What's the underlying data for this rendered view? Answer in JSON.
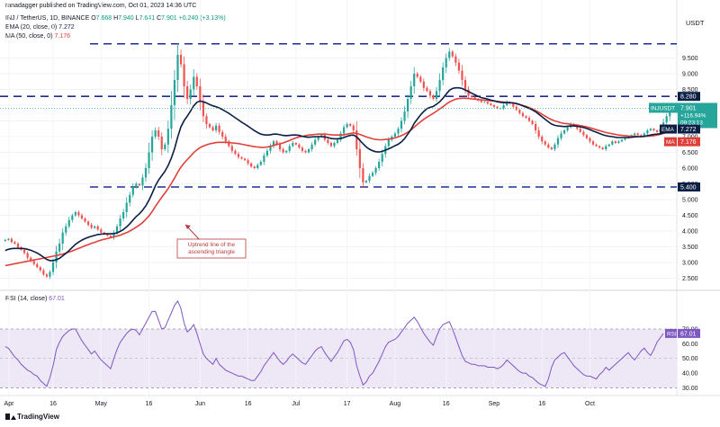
{
  "publisher": "ranadagger published on TradingView.com, Oct 01, 2023 14:36 UTC",
  "header": {
    "symbol": "INJ / TetherUS, 1D, BINANCE",
    "ohlc_prefix": "O",
    "open": "7.668",
    "high_prefix": "H",
    "high": "7.940",
    "low_prefix": "L",
    "low": "7.641",
    "close_prefix": "C",
    "close": "7.901",
    "change": "+0.240 (+3.13%)",
    "ema_label": "EMA (20, close, 0)",
    "ema_value": "7.272",
    "ma_label": "MA (50, close, 0)",
    "ma_value": "7.176",
    "rsi_label": "RSI (14, close)",
    "rsi_value": "67.01"
  },
  "currency": "USDT",
  "watermark": "TradingView",
  "colors": {
    "up": "#26a69a",
    "down": "#ef5350",
    "ema": "#0b1f44",
    "ma": "#e0403a",
    "level": "#1e2b96",
    "rsi": "#7e57c2",
    "rsi_fill": "#ede7f6",
    "annotation": "#b53a3a"
  },
  "chart_data": [
    {
      "type": "candlestick",
      "x_ticks": [
        "Apr",
        "16",
        "May",
        "16",
        "Jun",
        "16",
        "Jul",
        "17",
        "Aug",
        "16",
        "Sep",
        "16",
        "Oct"
      ],
      "y_ticks": [
        "2.500",
        "3.000",
        "3.500",
        "4.000",
        "4.500",
        "5.000",
        "5.500",
        "6.000",
        "6.500",
        "7.000",
        "7.500",
        "8.000",
        "8.500",
        "9.000",
        "9.500"
      ],
      "ylim": [
        2.2,
        10.2
      ],
      "levels": [
        {
          "value": 9.95,
          "style": "dashed"
        },
        {
          "value": 8.28,
          "label": "8.280",
          "style": "dashed"
        },
        {
          "value": 5.4,
          "label": "5.400",
          "style": "dashed"
        }
      ],
      "price_tag": {
        "symbol": "INJUSDT",
        "value": "7.901",
        "change": "+116.94%",
        "countdown": "09:23:13"
      },
      "ema_tag": {
        "name": "EMA",
        "value": "7.272"
      },
      "ma_tag": {
        "name": "MA",
        "value": "7.176"
      },
      "annotation": "Uptrend line of the ascending triangle",
      "closes": [
        3.72,
        3.75,
        3.65,
        3.6,
        3.48,
        3.4,
        3.3,
        3.15,
        3.05,
        2.95,
        2.85,
        2.75,
        2.62,
        2.55,
        2.7,
        3.0,
        3.35,
        3.6,
        3.95,
        4.15,
        4.35,
        4.5,
        4.6,
        4.5,
        4.4,
        4.3,
        4.2,
        4.1,
        4.15,
        4.05,
        3.95,
        3.9,
        3.85,
        3.8,
        3.95,
        4.15,
        4.4,
        4.6,
        4.9,
        5.15,
        5.4,
        5.5,
        5.45,
        5.7,
        6.0,
        6.5,
        7.0,
        7.2,
        7.0,
        6.6,
        6.75,
        7.25,
        8.0,
        8.8,
        9.6,
        9.3,
        8.6,
        8.2,
        8.5,
        8.9,
        8.6,
        8.1,
        7.65,
        7.4,
        7.3,
        7.2,
        7.35,
        7.15,
        7.0,
        6.85,
        6.7,
        6.55,
        6.45,
        6.35,
        6.3,
        6.25,
        6.15,
        6.05,
        6.0,
        6.1,
        6.2,
        6.4,
        6.55,
        6.7,
        6.85,
        6.75,
        6.6,
        6.5,
        6.55,
        6.7,
        6.8,
        6.75,
        6.65,
        6.55,
        6.5,
        6.6,
        6.75,
        6.9,
        7.0,
        7.05,
        6.9,
        6.8,
        6.7,
        6.8,
        6.9,
        7.1,
        7.3,
        7.4,
        7.35,
        7.2,
        6.6,
        6.0,
        5.55,
        5.6,
        5.75,
        5.85,
        6.0,
        6.2,
        6.45,
        6.7,
        6.9,
        7.0,
        7.1,
        7.25,
        7.5,
        7.8,
        8.2,
        8.6,
        9.0,
        8.9,
        8.75,
        8.55,
        8.45,
        8.3,
        8.2,
        8.45,
        8.8,
        9.2,
        9.5,
        9.7,
        9.55,
        9.35,
        9.1,
        8.8,
        8.5,
        8.3,
        8.25,
        8.2,
        8.15,
        8.1,
        8.1,
        8.05,
        8.0,
        7.95,
        7.9,
        7.9,
        8.0,
        8.1,
        8.05,
        7.95,
        7.85,
        7.75,
        7.65,
        7.6,
        7.5,
        7.4,
        7.2,
        7.0,
        6.85,
        6.75,
        6.65,
        6.6,
        6.75,
        6.95,
        7.1,
        7.2,
        7.3,
        7.4,
        7.35,
        7.25,
        7.15,
        7.05,
        6.95,
        6.85,
        6.75,
        6.7,
        6.65,
        6.6,
        6.7,
        6.75,
        6.85,
        6.8,
        6.85,
        6.9,
        6.95,
        7.0,
        7.05,
        7.1,
        7.05,
        7.0,
        7.1,
        7.2,
        7.25,
        7.2,
        7.15,
        7.25,
        7.45,
        7.65,
        7.901
      ],
      "ema": [
        3.38,
        3.42,
        3.44,
        3.45,
        3.45,
        3.45,
        3.44,
        3.42,
        3.39,
        3.35,
        3.3,
        3.24,
        3.17,
        3.1,
        3.06,
        3.06,
        3.09,
        3.13,
        3.21,
        3.29,
        3.38,
        3.48,
        3.58,
        3.65,
        3.71,
        3.76,
        3.8,
        3.83,
        3.86,
        3.89,
        3.9,
        3.91,
        3.91,
        3.91,
        3.92,
        3.94,
        3.99,
        4.05,
        4.13,
        4.23,
        4.35,
        4.46,
        4.55,
        4.66,
        4.8,
        4.98,
        5.2,
        5.43,
        5.62,
        5.76,
        5.9,
        6.08,
        6.32,
        6.61,
        6.99,
        7.31,
        7.51,
        7.65,
        7.81,
        7.98,
        8.09,
        8.13,
        8.11,
        8.07,
        8.02,
        7.98,
        7.95,
        7.91,
        7.86,
        7.8,
        7.74,
        7.67,
        7.6,
        7.53,
        7.46,
        7.4,
        7.33,
        7.26,
        7.19,
        7.13,
        7.08,
        7.06,
        7.05,
        7.06,
        7.08,
        7.08,
        7.06,
        7.04,
        7.03,
        7.04,
        7.05,
        7.05,
        7.04,
        7.01,
        6.99,
        6.98,
        6.99,
        7.0,
        7.0,
        7.0,
        6.99,
        6.97,
        6.94,
        6.93,
        6.93,
        6.94,
        6.97,
        7.01,
        7.04,
        7.05,
        6.99,
        6.88,
        6.77,
        6.67,
        6.6,
        6.55,
        6.52,
        6.51,
        6.53,
        6.57,
        6.61,
        6.66,
        6.71,
        6.76,
        6.83,
        6.94,
        7.08,
        7.23,
        7.42,
        7.56,
        7.69,
        7.8,
        7.89,
        7.93,
        7.96,
        8.03,
        8.11,
        8.22,
        8.35,
        8.47,
        8.53,
        8.55,
        8.55,
        8.53,
        8.48,
        8.43,
        8.38,
        8.33,
        8.28,
        8.24,
        8.22,
        8.19,
        8.16,
        8.14,
        8.11,
        8.09,
        8.08,
        8.08,
        8.08,
        8.07,
        8.05,
        8.02,
        7.98,
        7.94,
        7.9,
        7.85,
        7.79,
        7.71,
        7.63,
        7.55,
        7.47,
        7.4,
        7.36,
        7.34,
        7.33,
        7.32,
        7.33,
        7.34,
        7.34,
        7.33,
        7.31,
        7.29,
        7.26,
        7.22,
        7.18,
        7.14,
        7.1,
        7.06,
        7.03,
        7.01,
        7.0,
        6.98,
        6.97,
        6.97,
        6.97,
        6.97,
        6.98,
        6.99,
        7.0,
        7.0,
        7.01,
        7.03,
        7.05,
        7.07,
        7.08,
        7.09,
        7.12,
        7.17,
        7.27
      ],
      "ma": [
        2.9,
        2.92,
        2.94,
        2.96,
        2.98,
        3.0,
        3.02,
        3.04,
        3.06,
        3.08,
        3.1,
        3.12,
        3.14,
        3.16,
        3.18,
        3.2,
        3.22,
        3.24,
        3.27,
        3.3,
        3.33,
        3.37,
        3.41,
        3.45,
        3.49,
        3.53,
        3.57,
        3.61,
        3.64,
        3.68,
        3.71,
        3.74,
        3.76,
        3.79,
        3.81,
        3.84,
        3.87,
        3.91,
        3.95,
        4.0,
        4.06,
        4.12,
        4.19,
        4.27,
        4.37,
        4.48,
        4.62,
        4.78,
        4.93,
        5.07,
        5.21,
        5.35,
        5.51,
        5.68,
        5.87,
        6.03,
        6.16,
        6.27,
        6.38,
        6.49,
        6.58,
        6.65,
        6.7,
        6.74,
        6.77,
        6.79,
        6.81,
        6.82,
        6.82,
        6.82,
        6.81,
        6.8,
        6.79,
        6.78,
        6.76,
        6.74,
        6.72,
        6.7,
        6.68,
        6.67,
        6.66,
        6.66,
        6.67,
        6.69,
        6.72,
        6.75,
        6.77,
        6.8,
        6.84,
        6.88,
        6.92,
        6.96,
        6.99,
        7.01,
        7.03,
        7.05,
        7.06,
        7.07,
        7.08,
        7.08,
        7.08,
        7.07,
        7.06,
        7.05,
        7.05,
        7.05,
        7.06,
        7.08,
        7.1,
        7.12,
        7.1,
        7.07,
        7.03,
        6.99,
        6.96,
        6.93,
        6.91,
        6.9,
        6.9,
        6.91,
        6.92,
        6.94,
        6.96,
        6.99,
        7.03,
        7.08,
        7.14,
        7.21,
        7.3,
        7.39,
        7.47,
        7.55,
        7.62,
        7.68,
        7.74,
        7.81,
        7.88,
        7.95,
        8.03,
        8.1,
        8.15,
        8.19,
        8.21,
        8.22,
        8.22,
        8.21,
        8.2,
        8.19,
        8.18,
        8.17,
        8.16,
        8.15,
        8.14,
        8.13,
        8.12,
        8.11,
        8.1,
        8.09,
        8.08,
        8.07,
        8.05,
        8.02,
        7.99,
        7.96,
        7.92,
        7.88,
        7.83,
        7.77,
        7.71,
        7.65,
        7.59,
        7.54,
        7.5,
        7.47,
        7.44,
        7.42,
        7.41,
        7.39,
        7.38,
        7.37,
        7.35,
        7.33,
        7.31,
        7.28,
        7.25,
        7.22,
        7.19,
        7.16,
        7.13,
        7.11,
        7.09,
        7.07,
        7.05,
        7.04,
        7.03,
        7.02,
        7.01,
        7.01,
        7.0,
        7.0,
        7.01,
        7.01,
        7.02,
        7.03,
        7.05,
        7.07,
        7.1,
        7.13,
        7.18
      ]
    },
    {
      "type": "line",
      "name": "RSI (14, close)",
      "y_ticks": [
        "30.00",
        "40.00",
        "50.00",
        "60.00",
        "70.00"
      ],
      "ylim": [
        26,
        92
      ],
      "bands": [
        30,
        50,
        70
      ],
      "value_tag": {
        "name": "RSI",
        "value": "67.01"
      },
      "values": [
        58,
        57,
        54,
        51,
        49,
        46,
        44,
        42,
        41,
        39,
        38,
        35,
        33,
        31,
        37,
        45,
        56,
        61,
        65,
        67,
        69,
        70,
        70,
        66,
        62,
        59,
        56,
        53,
        55,
        52,
        49,
        47,
        45,
        43,
        50,
        56,
        61,
        64,
        67,
        69,
        70,
        69,
        66,
        70,
        74,
        78,
        82,
        82,
        76,
        70,
        71,
        76,
        81,
        86,
        89,
        84,
        74,
        68,
        70,
        73,
        67,
        60,
        53,
        50,
        48,
        46,
        50,
        46,
        44,
        42,
        41,
        40,
        39,
        38,
        38,
        37,
        36,
        35,
        35,
        38,
        41,
        45,
        48,
        51,
        54,
        51,
        48,
        46,
        48,
        51,
        53,
        51,
        49,
        47,
        46,
        49,
        52,
        55,
        57,
        58,
        54,
        51,
        48,
        51,
        54,
        58,
        62,
        63,
        61,
        56,
        45,
        38,
        32,
        34,
        38,
        40,
        44,
        48,
        53,
        58,
        61,
        62,
        63,
        65,
        68,
        71,
        74,
        76,
        78,
        75,
        71,
        67,
        64,
        61,
        59,
        65,
        70,
        73,
        74,
        75,
        70,
        64,
        58,
        52,
        48,
        47,
        46,
        46,
        45,
        45,
        45,
        44,
        44,
        44,
        43,
        44,
        46,
        49,
        47,
        45,
        43,
        41,
        40,
        40,
        38,
        37,
        35,
        33,
        32,
        31,
        36,
        44,
        49,
        51,
        53,
        54,
        51,
        48,
        45,
        43,
        41,
        39,
        38,
        38,
        37,
        36,
        39,
        41,
        44,
        42,
        44,
        46,
        48,
        50,
        52,
        54,
        51,
        49,
        52,
        55,
        57,
        54,
        52,
        56,
        61,
        64,
        67.01
      ]
    }
  ]
}
